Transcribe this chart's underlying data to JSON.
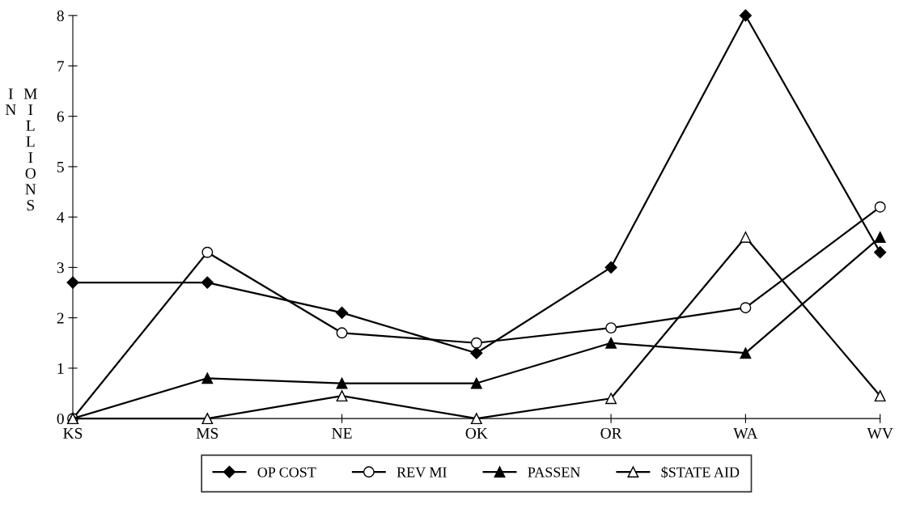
{
  "chart_data": {
    "type": "line",
    "ylabel": "IN MILLIONS",
    "categories": [
      "KS",
      "MS",
      "NE",
      "OK",
      "OR",
      "WA",
      "WV"
    ],
    "ylim": [
      0,
      8
    ],
    "yticks": [
      0,
      1,
      2,
      3,
      4,
      5,
      6,
      7,
      8
    ],
    "grid": false,
    "legend": "bottom",
    "line_style": "solid",
    "series": [
      {
        "name": "OP COST",
        "color": "#000000",
        "marker": "diamond",
        "values": [
          2.7,
          2.7,
          2.1,
          1.3,
          3.0,
          8.0,
          3.3
        ]
      },
      {
        "name": "REV MI",
        "color": "#000000",
        "marker": "circle",
        "values": [
          0,
          3.3,
          1.7,
          1.5,
          1.8,
          2.2,
          4.2
        ]
      },
      {
        "name": "PASSEN",
        "color": "#000000",
        "marker": "triangle",
        "values": [
          0,
          0.8,
          0.7,
          0.7,
          1.5,
          1.3,
          3.6
        ]
      },
      {
        "name": "$STATE AID",
        "color": "#000000",
        "marker": "triangle",
        "values": [
          0,
          0,
          0.45,
          0,
          0.4,
          3.6,
          0.45
        ]
      }
    ]
  }
}
